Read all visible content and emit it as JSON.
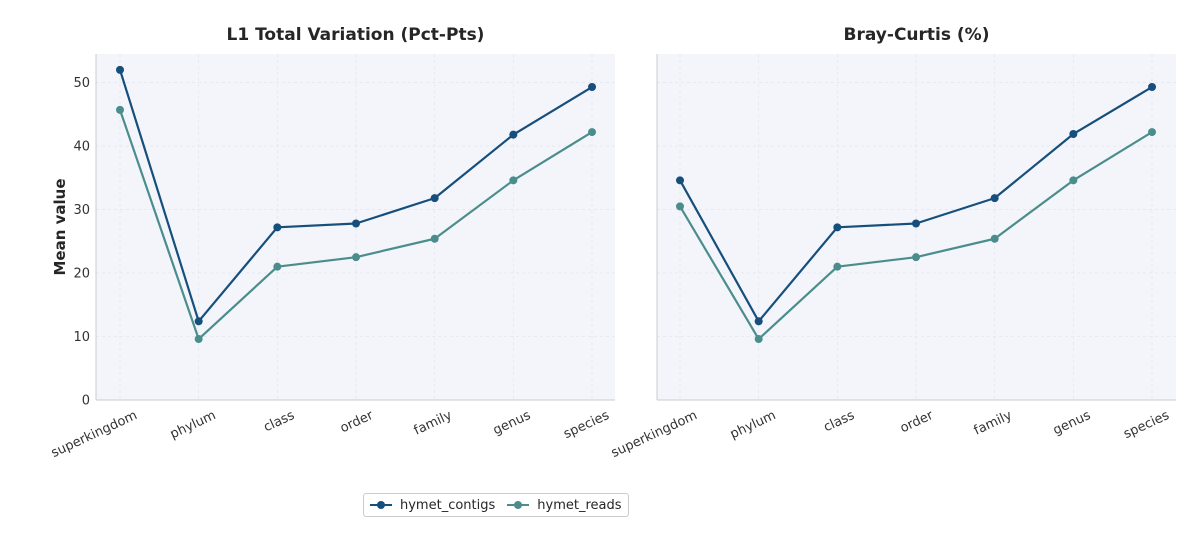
{
  "chart_data": [
    {
      "type": "line",
      "title": "L1 Total Variation (Pct-Pts)",
      "ylabel": "Mean value",
      "xlabel": "",
      "categories": [
        "superkingdom",
        "phylum",
        "class",
        "order",
        "family",
        "genus",
        "species"
      ],
      "ylim": [
        0,
        54.5
      ],
      "yticks": [
        "0",
        "10",
        "20",
        "30",
        "40",
        "50"
      ],
      "grid": true,
      "series": [
        {
          "name": "hymet_contigs",
          "values": [
            52.0,
            12.4,
            27.2,
            27.8,
            31.8,
            41.8,
            49.3
          ]
        },
        {
          "name": "hymet_reads",
          "values": [
            45.7,
            9.6,
            21.0,
            22.5,
            25.4,
            34.6,
            42.2
          ]
        }
      ]
    },
    {
      "type": "line",
      "title": "Bray-Curtis (%)",
      "ylabel": "",
      "xlabel": "",
      "categories": [
        "superkingdom",
        "phylum",
        "class",
        "order",
        "family",
        "genus",
        "species"
      ],
      "ylim": [
        0,
        54.5
      ],
      "grid": true,
      "series": [
        {
          "name": "hymet_contigs",
          "values": [
            34.6,
            12.4,
            27.2,
            27.8,
            31.8,
            41.9,
            49.3
          ]
        },
        {
          "name": "hymet_reads",
          "values": [
            30.5,
            9.6,
            21.0,
            22.5,
            25.4,
            34.6,
            42.2
          ]
        }
      ]
    }
  ],
  "legend": {
    "placement": "bottom-center",
    "items": [
      {
        "label": "hymet_contigs",
        "color": "#164e7c"
      },
      {
        "label": "hymet_reads",
        "color": "#4a8d8c"
      }
    ]
  },
  "colors": {
    "plot_bg": "#f3f5fb",
    "grid": "#e2e6ef",
    "axis": "#cccccc"
  }
}
